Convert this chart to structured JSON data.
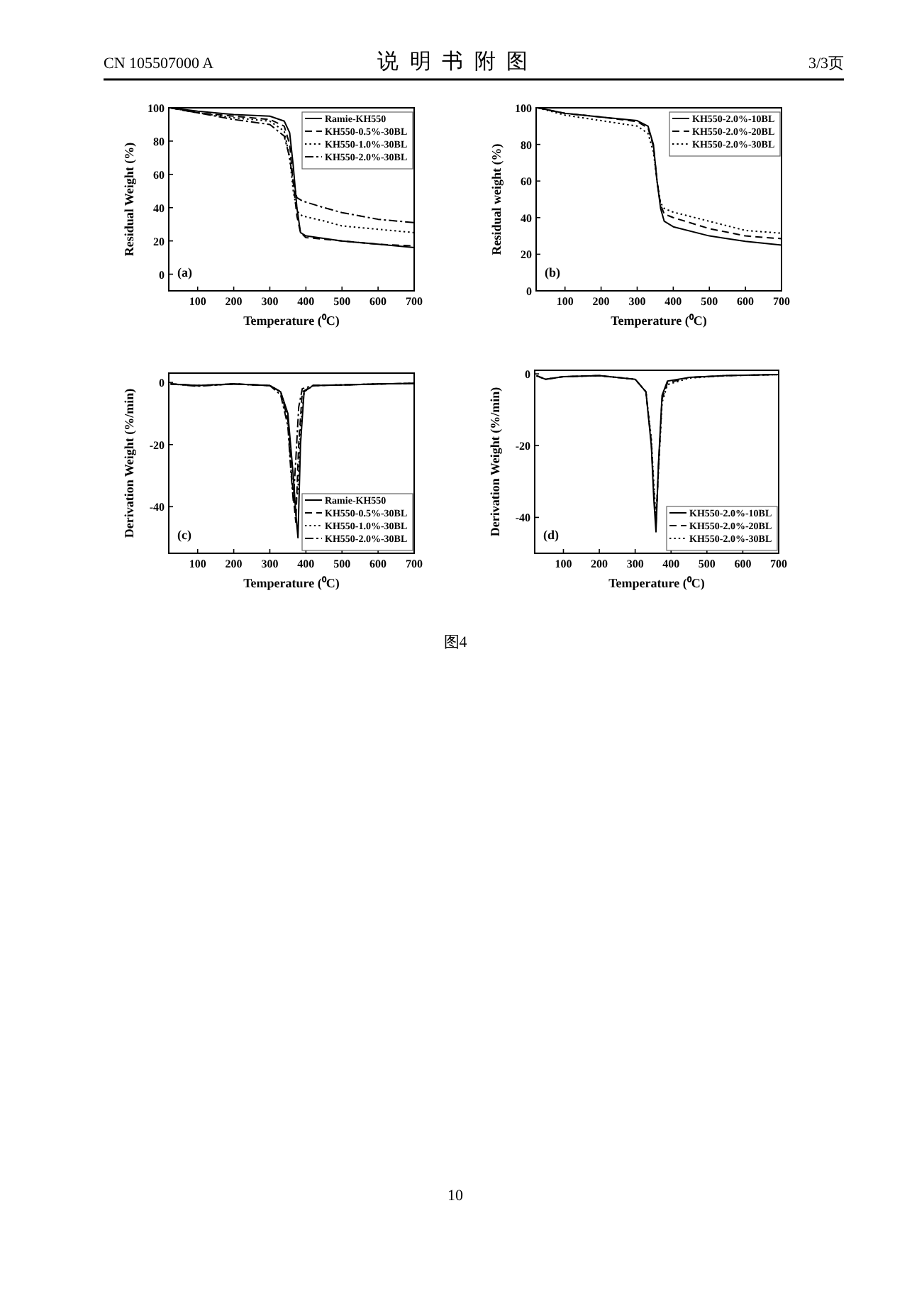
{
  "chart_data": [
    {
      "type": "line",
      "xlabel": "Temperature (⁰C)",
      "ylabel": "Residual Weight (%)",
      "xlim": [
        20,
        700
      ],
      "ylim": [
        -10,
        100
      ],
      "xticks": [
        100,
        200,
        300,
        400,
        500,
        600,
        700
      ],
      "yticks": [
        0,
        20,
        40,
        60,
        80,
        100
      ],
      "legend": "top right",
      "grid": false,
      "annotations": [
        "(a)",
        "CN 105507000 A",
        "说 明 书 附 图",
        "3/3页"
      ],
      "series": [
        {
          "name": "Ramie-KH550",
          "color": "#000000",
          "line_style": "solid",
          "x": [
            25,
            100,
            200,
            300,
            340,
            355,
            365,
            375,
            385,
            400,
            500,
            600,
            700
          ],
          "values": [
            100,
            98,
            96,
            95,
            92,
            85,
            65,
            40,
            25,
            23,
            20,
            18,
            16
          ]
        },
        {
          "name": "KH550-0.5%-30BL",
          "color": "#000000",
          "line_style": "dashed",
          "x": [
            25,
            100,
            200,
            300,
            340,
            355,
            365,
            375,
            385,
            400,
            500,
            600,
            700
          ],
          "values": [
            100,
            97,
            95,
            93,
            89,
            78,
            55,
            35,
            25,
            22,
            20,
            18,
            17
          ]
        },
        {
          "name": "KH550-1.0%-30BL",
          "color": "#000000",
          "line_style": "dotted",
          "x": [
            25,
            100,
            200,
            300,
            340,
            355,
            365,
            375,
            390,
            450,
            500,
            600,
            700
          ],
          "values": [
            100,
            97,
            94,
            92,
            86,
            70,
            50,
            38,
            35,
            32,
            29,
            27,
            25
          ]
        },
        {
          "name": "KH550-2.0%-30BL",
          "color": "#000000",
          "line_style": "dashdot",
          "x": [
            25,
            100,
            200,
            300,
            340,
            355,
            365,
            375,
            390,
            450,
            500,
            600,
            700
          ],
          "values": [
            100,
            97,
            93,
            90,
            83,
            70,
            55,
            46,
            44,
            40,
            37,
            33,
            31
          ]
        }
      ]
    },
    {
      "type": "line",
      "xlabel": "Temperature (⁰C)",
      "ylabel": "Residual weight (%)",
      "xlim": [
        20,
        700
      ],
      "ylim": [
        0,
        100
      ],
      "xticks": [
        100,
        200,
        300,
        400,
        500,
        600,
        700
      ],
      "yticks": [
        0,
        20,
        40,
        60,
        80,
        100
      ],
      "legend": "top right",
      "grid": false,
      "annotations": [
        "(b)"
      ],
      "series": [
        {
          "name": "KH550-2.0%-10BL",
          "color": "#000000",
          "line_style": "solid",
          "x": [
            25,
            100,
            200,
            300,
            330,
            345,
            355,
            365,
            375,
            400,
            500,
            600,
            700
          ],
          "values": [
            100,
            97,
            95,
            93,
            90,
            80,
            60,
            45,
            38,
            35,
            30,
            27,
            25
          ]
        },
        {
          "name": "KH550-2.0%-20BL",
          "color": "#000000",
          "line_style": "dashed",
          "x": [
            25,
            100,
            200,
            300,
            330,
            345,
            355,
            365,
            375,
            400,
            500,
            600,
            700
          ],
          "values": [
            100,
            97,
            95,
            92.5,
            89,
            79,
            60,
            47,
            42,
            40,
            34,
            30,
            28.5
          ]
        },
        {
          "name": "KH550-2.0%-30BL",
          "color": "#000000",
          "line_style": "dotted",
          "x": [
            25,
            100,
            200,
            300,
            330,
            345,
            355,
            365,
            375,
            400,
            500,
            600,
            700
          ],
          "values": [
            100,
            96,
            93,
            90,
            86,
            76,
            60,
            48,
            45,
            43,
            38,
            33,
            31.5
          ]
        }
      ]
    },
    {
      "type": "line",
      "xlabel": "Temperature (⁰C)",
      "ylabel": "Derivation Weight (%/min)",
      "xlim": [
        20,
        700
      ],
      "ylim": [
        -55,
        3
      ],
      "xticks": [
        100,
        200,
        300,
        400,
        500,
        600,
        700
      ],
      "yticks": [
        -40,
        -20,
        0
      ],
      "legend": "bottom right",
      "grid": false,
      "annotations": [
        "(c)"
      ],
      "series": [
        {
          "name": "Ramie-KH550",
          "color": "#000000",
          "line_style": "solid",
          "x": [
            25,
            100,
            200,
            300,
            330,
            350,
            365,
            372,
            378,
            385,
            395,
            420,
            500,
            600,
            700
          ],
          "values": [
            -0.5,
            -1,
            -0.5,
            -1,
            -3,
            -10,
            -30,
            -42,
            -50,
            -20,
            -3,
            -1,
            -0.8,
            -0.5,
            -0.3
          ]
        },
        {
          "name": "KH550-0.5%-30BL",
          "color": "#000000",
          "line_style": "dashed",
          "x": [
            25,
            100,
            200,
            300,
            330,
            350,
            362,
            368,
            372,
            380,
            390,
            420,
            500,
            600,
            700
          ],
          "values": [
            -0.5,
            -1,
            -0.5,
            -1,
            -3,
            -12,
            -32,
            -40,
            -45,
            -20,
            -3,
            -1,
            -0.8,
            -0.5,
            -0.3
          ]
        },
        {
          "name": "KH550-1.0%-30BL",
          "color": "#000000",
          "line_style": "dotted",
          "x": [
            25,
            100,
            200,
            300,
            330,
            350,
            360,
            368,
            378,
            385,
            395,
            420,
            500,
            600,
            700
          ],
          "values": [
            -0.5,
            -1,
            -0.5,
            -1,
            -3,
            -12,
            -30,
            -40,
            -35,
            -15,
            -3,
            -1,
            -0.8,
            -0.5,
            -0.3
          ]
        },
        {
          "name": "KH550-2.0%-30BL",
          "color": "#000000",
          "line_style": "dashdot",
          "x": [
            25,
            100,
            200,
            300,
            330,
            350,
            358,
            365,
            372,
            380,
            390,
            420,
            500,
            600,
            700
          ],
          "values": [
            -0.5,
            -1.2,
            -0.5,
            -1,
            -4,
            -14,
            -28,
            -38,
            -25,
            -8,
            -2,
            -1,
            -0.8,
            -0.5,
            -0.3
          ]
        }
      ]
    },
    {
      "type": "line",
      "xlabel": "Temperature (⁰C)",
      "ylabel": "Derivation Weight (%/min)",
      "xlim": [
        20,
        700
      ],
      "ylim": [
        -50,
        1
      ],
      "xticks": [
        100,
        200,
        300,
        400,
        500,
        600,
        700
      ],
      "yticks": [
        -40,
        -20,
        0
      ],
      "legend": "bottom right",
      "grid": false,
      "annotations": [
        "(d)",
        "图4",
        "10"
      ],
      "series": [
        {
          "name": "KH550-2.0%-10BL",
          "color": "#000000",
          "line_style": "solid",
          "x": [
            25,
            50,
            100,
            200,
            300,
            330,
            345,
            352,
            358,
            365,
            375,
            390,
            450,
            550,
            700
          ],
          "values": [
            -0.5,
            -1.5,
            -0.8,
            -0.5,
            -1.5,
            -5,
            -20,
            -35,
            -44,
            -25,
            -6,
            -2,
            -1,
            -0.5,
            -0.2
          ]
        },
        {
          "name": "KH550-2.0%-20BL",
          "color": "#000000",
          "line_style": "dashed",
          "x": [
            25,
            50,
            100,
            200,
            300,
            330,
            345,
            352,
            358,
            365,
            375,
            390,
            450,
            550,
            700
          ],
          "values": [
            -0.5,
            -1.5,
            -0.8,
            -0.5,
            -1.5,
            -5,
            -19,
            -33,
            -42,
            -26,
            -7,
            -2.5,
            -1,
            -0.5,
            -0.2
          ]
        },
        {
          "name": "KH550-2.0%-30BL",
          "color": "#000000",
          "line_style": "dotted",
          "x": [
            25,
            50,
            100,
            200,
            300,
            330,
            345,
            352,
            358,
            365,
            375,
            390,
            450,
            550,
            700
          ],
          "values": [
            -0.5,
            -1.5,
            -0.8,
            -0.5,
            -1.5,
            -5,
            -18,
            -31,
            -40,
            -27,
            -8,
            -3,
            -1.2,
            -0.5,
            -0.2
          ]
        }
      ]
    }
  ]
}
